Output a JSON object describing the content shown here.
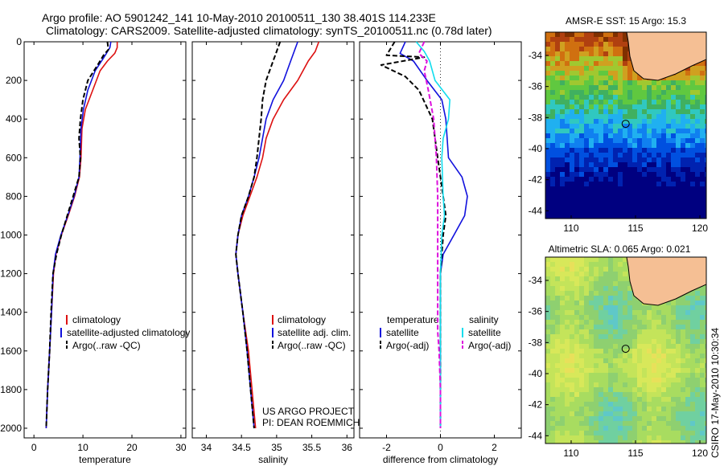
{
  "header": {
    "line1": "Argo profile: AO 5901242_141 10-May-2010 20100511_130 38.401S 114.233E",
    "line2": "Climatology: CARS2009. Satellite-adjusted climatology: synTS_20100511.nc (0.78d later)"
  },
  "credit": "CSIRO 17-May-2010 10:30:34",
  "project_note": [
    "US ARGO PROJECT",
    "PI: DEAN ROEMMICH"
  ],
  "colors": {
    "climatology": "#dd1111",
    "satellite": "#1111dd",
    "argo": "#000000",
    "sat_salinity": "#11ddee",
    "argo_salinity": "#dd11dd",
    "land": "#f5bf94"
  },
  "chart_data": [
    {
      "type": "line",
      "id": "temperature",
      "xlabel": "temperature",
      "ylabel": "",
      "xlim": [
        -2,
        31
      ],
      "ylim": [
        2050,
        0
      ],
      "xticks": [
        0,
        10,
        20,
        30
      ],
      "yticks": [
        0,
        200,
        400,
        600,
        800,
        1000,
        1200,
        1400,
        1600,
        1800,
        2000
      ],
      "legend": [
        "climatology",
        "satellite-adjusted climatology",
        "Argo(..raw -QC)"
      ],
      "series": [
        {
          "name": "climatology",
          "style": "solid",
          "color": "#dd1111",
          "x": [
            17,
            17,
            16.5,
            15,
            13.5,
            12,
            10.5,
            9.8,
            9.6,
            9.3,
            8.3,
            7,
            5.6,
            4.5,
            4,
            3.6,
            3.2,
            2.8,
            2.5
          ],
          "y": [
            0,
            30,
            60,
            100,
            150,
            250,
            350,
            450,
            600,
            700,
            800,
            900,
            1000,
            1100,
            1200,
            1400,
            1600,
            1800,
            2000
          ]
        },
        {
          "name": "satellite-adjusted climatology",
          "style": "solid",
          "color": "#1111dd",
          "x": [
            15.7,
            15.5,
            14.8,
            13.8,
            12.5,
            11,
            10.1,
            9.6,
            9.4,
            9.2,
            8.2,
            6.9,
            5.5,
            4.4,
            3.9,
            3.6,
            3.2,
            2.8,
            2.5
          ],
          "y": [
            0,
            30,
            60,
            100,
            150,
            250,
            350,
            450,
            600,
            700,
            800,
            900,
            1000,
            1100,
            1200,
            1400,
            1600,
            1800,
            2000
          ]
        },
        {
          "name": "Argo(..raw -QC)",
          "style": "dash",
          "color": "#000000",
          "x": [
            15,
            15.2,
            14.2,
            13,
            11,
            10,
            9.5,
            9.2,
            9.5,
            9.2,
            8,
            6.8,
            5.6,
            4.6,
            3.9,
            3.5,
            3.2,
            2.8,
            2.5
          ],
          "y": [
            0,
            40,
            70,
            120,
            200,
            300,
            400,
            500,
            600,
            700,
            800,
            900,
            1000,
            1100,
            1200,
            1400,
            1600,
            1800,
            2000
          ]
        }
      ]
    },
    {
      "type": "line",
      "id": "salinity",
      "xlabel": "salinity",
      "ylabel": "",
      "xlim": [
        33.8,
        36.1
      ],
      "ylim": [
        2050,
        0
      ],
      "xticks": [
        34,
        34.5,
        35,
        35.5,
        36
      ],
      "yticks": [
        0,
        200,
        400,
        600,
        800,
        1000,
        1200,
        1400,
        1600,
        1800,
        2000
      ],
      "legend": [
        "climatology",
        "satellite adj. clim.",
        "Argo(..raw -QC)"
      ],
      "series": [
        {
          "name": "climatology",
          "style": "solid",
          "color": "#dd1111",
          "x": [
            35.6,
            35.55,
            35.45,
            35.3,
            35.1,
            34.95,
            34.85,
            34.8,
            34.72,
            34.62,
            34.52,
            34.45,
            34.42,
            34.45,
            34.52,
            34.6,
            34.65,
            34.7
          ],
          "y": [
            0,
            50,
            100,
            200,
            300,
            400,
            500,
            600,
            700,
            800,
            900,
            1000,
            1100,
            1200,
            1400,
            1600,
            1800,
            2000
          ]
        },
        {
          "name": "satellite adj. clim.",
          "style": "solid",
          "color": "#1111dd",
          "x": [
            35.3,
            35.25,
            35.2,
            35.1,
            34.95,
            34.85,
            34.8,
            34.75,
            34.68,
            34.6,
            34.5,
            34.45,
            34.42,
            34.45,
            34.52,
            34.58,
            34.63,
            34.68
          ],
          "y": [
            0,
            50,
            100,
            200,
            300,
            400,
            500,
            600,
            700,
            800,
            900,
            1000,
            1100,
            1200,
            1400,
            1600,
            1800,
            2000
          ]
        },
        {
          "name": "Argo(..raw -QC)",
          "style": "dash",
          "color": "#000000",
          "x": [
            35.05,
            35.0,
            34.95,
            34.85,
            34.8,
            34.78,
            34.75,
            34.72,
            34.68,
            34.6,
            34.5,
            34.45,
            34.42,
            34.45,
            34.52,
            34.58,
            34.63,
            34.68
          ],
          "y": [
            0,
            50,
            100,
            200,
            300,
            400,
            500,
            600,
            700,
            800,
            900,
            1000,
            1100,
            1200,
            1400,
            1600,
            1800,
            2000
          ]
        }
      ]
    },
    {
      "type": "line",
      "id": "difference",
      "xlabel": "difference from climatology",
      "ylabel": "",
      "xlim": [
        -3,
        3
      ],
      "ylim": [
        2050,
        0
      ],
      "xticks": [
        -2,
        0,
        2
      ],
      "yticks": [
        0,
        200,
        400,
        600,
        800,
        1000,
        1200,
        1400,
        1600,
        1800,
        2000
      ],
      "legend_groups": [
        {
          "title": "temperature",
          "entries": [
            "satellite",
            "Argo(-adj)"
          ]
        },
        {
          "title": "salinity",
          "entries": [
            "satellite",
            "Argo(-adj)"
          ]
        }
      ],
      "series": [
        {
          "name": "satellite",
          "group": "temperature",
          "style": "solid",
          "color": "#1111dd",
          "x": [
            -1.3,
            -1.5,
            -1.0,
            -0.5,
            0.05,
            0.2,
            0.3,
            0.8,
            1.0,
            0.9,
            0.5,
            0.1,
            0,
            0,
            0,
            0
          ],
          "y": [
            0,
            60,
            100,
            200,
            300,
            400,
            600,
            700,
            800,
            900,
            1000,
            1100,
            1200,
            1400,
            1700,
            2000
          ]
        },
        {
          "name": "Argo(-adj)",
          "group": "temperature",
          "style": "dash",
          "color": "#000000",
          "x": [
            -1.7,
            -2.0,
            -0.6,
            -2.2,
            -1.3,
            -0.8,
            -0.3,
            -0.1,
            0.1,
            0.2,
            0.1,
            0.05,
            0,
            0,
            0,
            0
          ],
          "y": [
            0,
            70,
            80,
            120,
            180,
            250,
            400,
            600,
            800,
            900,
            1000,
            1100,
            1200,
            1400,
            1700,
            2000
          ]
        },
        {
          "name": "satellite",
          "group": "salinity",
          "style": "solid",
          "color": "#11ddee",
          "x": [
            -0.9,
            -0.6,
            -0.4,
            -0.2,
            0.35,
            0.3,
            0.1,
            0.05,
            0.1,
            0.15,
            0.05,
            0,
            0,
            0,
            0
          ],
          "y": [
            0,
            50,
            100,
            200,
            300,
            400,
            500,
            600,
            800,
            900,
            1000,
            1200,
            1400,
            1700,
            2000
          ]
        },
        {
          "name": "Argo(-adj)",
          "group": "salinity",
          "style": "dash",
          "color": "#dd11dd",
          "x": [
            -0.6,
            -0.8,
            -0.5,
            -0.6,
            -0.45,
            -0.25,
            -0.15,
            -0.1,
            -0.1,
            -0.1,
            -0.1,
            -0.1,
            -0.05,
            0,
            0
          ],
          "y": [
            0,
            60,
            100,
            150,
            250,
            400,
            600,
            800,
            1000,
            1200,
            1400,
            1500,
            1600,
            1800,
            2000
          ]
        }
      ]
    },
    {
      "type": "heatmap",
      "id": "sst_map",
      "title": "AMSR-E SST: 15 Argo: 15.3",
      "xlim": [
        108,
        120.5
      ],
      "ylim": [
        -44.5,
        -32.5
      ],
      "xticks": [
        110,
        115,
        120
      ],
      "yticks": [
        -34,
        -36,
        -38,
        -40,
        -42,
        -44
      ],
      "argo_position": [
        114.233,
        -38.401
      ]
    },
    {
      "type": "heatmap",
      "id": "sla_map",
      "title": "Altimetric SLA: 0.065 Argo: 0.021",
      "xlim": [
        108,
        120.5
      ],
      "ylim": [
        -44.5,
        -32.5
      ],
      "xticks": [
        110,
        115,
        120
      ],
      "yticks": [
        -34,
        -36,
        -38,
        -40,
        -42,
        -44
      ],
      "argo_position": [
        114.233,
        -38.401
      ]
    }
  ]
}
